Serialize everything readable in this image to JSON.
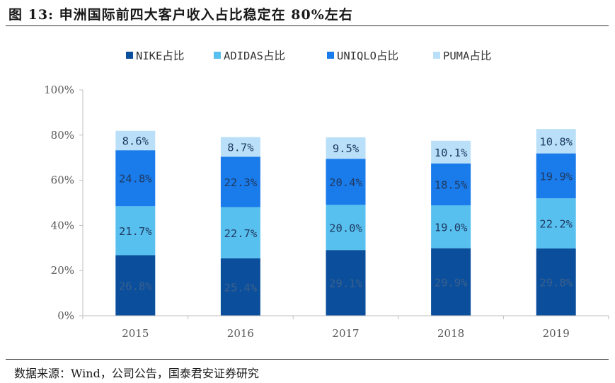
{
  "figure": {
    "title": "图 13:  申洲国际前四大客户收入占比稳定在 80%左右",
    "source": "数据来源：Wind，公司公告，国泰君安证券研究"
  },
  "chart_data": {
    "type": "stacked-bar",
    "categories": [
      "2015",
      "2016",
      "2017",
      "2018",
      "2019"
    ],
    "series": [
      {
        "name": "NIKE占比",
        "color": "#0b4f9c",
        "label_color": "#3a5f8c",
        "values": [
          26.8,
          25.4,
          29.1,
          29.9,
          29.8
        ],
        "labels": [
          "26.8%",
          "25.4%",
          "29.1%",
          "29.9%",
          "29.8%"
        ]
      },
      {
        "name": "ADIDAS占比",
        "color": "#58c0ef",
        "label_color": "#1f3b63",
        "values": [
          21.7,
          22.7,
          20.0,
          19.0,
          22.2
        ],
        "labels": [
          "21.7%",
          "22.7%",
          "20.0%",
          "19.0%",
          "22.2%"
        ]
      },
      {
        "name": "UNIQLO占比",
        "color": "#1a7bea",
        "label_color": "#1f3b63",
        "values": [
          24.8,
          22.3,
          20.4,
          18.5,
          19.9
        ],
        "labels": [
          "24.8%",
          "22.3%",
          "20.4%",
          "18.5%",
          "19.9%"
        ]
      },
      {
        "name": "PUMA占比",
        "color": "#b9e0f8",
        "label_color": "#1f3b63",
        "values": [
          8.6,
          8.7,
          9.5,
          10.1,
          10.8
        ],
        "labels": [
          "8.6%",
          "8.7%",
          "9.5%",
          "10.1%",
          "10.8%"
        ]
      }
    ],
    "y_ticks": [
      0,
      20,
      40,
      60,
      80,
      100
    ],
    "y_tick_labels": [
      "0%",
      "20%",
      "40%",
      "60%",
      "80%",
      "100%"
    ],
    "ylim": [
      0,
      100
    ],
    "xlabel": "",
    "ylabel": "",
    "grid": false,
    "legend_position": "top"
  }
}
